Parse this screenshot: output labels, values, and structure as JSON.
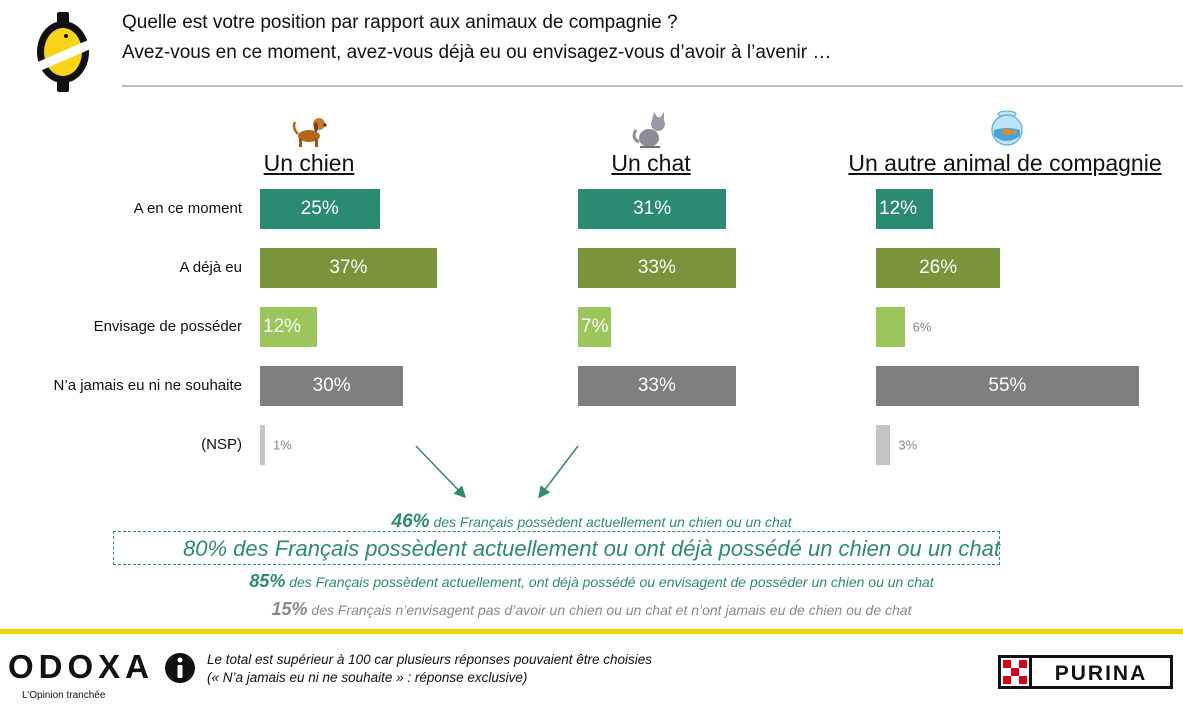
{
  "header": {
    "title_line1": "Quelle est votre position par rapport aux animaux de compagnie ?",
    "title_line2": "Avez-vous en ce moment, avez-vous déjà eu ou envisagez-vous d’avoir à l’avenir …"
  },
  "icons": {
    "logo": "odoxa-badge-icon",
    "dog": "dog-icon",
    "cat": "cat-icon",
    "other": "fishbowl-icon",
    "info": "info-icon",
    "purina": "purina-logo"
  },
  "chart_data": {
    "type": "bar",
    "orientation": "horizontal",
    "categories": [
      "A en ce moment",
      "A déjà eu",
      "Envisage de posséder",
      "N’a jamais eu ni ne souhaite",
      "(NSP)"
    ],
    "category_colors": [
      "#2a8a72",
      "#7a943b",
      "#9cc55c",
      "#7f7f7f",
      "#c4c4c4"
    ],
    "groups": [
      {
        "name": "Un chien",
        "values": [
          25,
          37,
          12,
          30,
          1
        ],
        "labels": [
          "25%",
          "37%",
          "12%",
          "30%",
          "1%"
        ]
      },
      {
        "name": "Un chat",
        "values": [
          31,
          33,
          7,
          33,
          null
        ],
        "labels": [
          "31%",
          "33%",
          "7%",
          "33%",
          ""
        ]
      },
      {
        "name": "Un autre animal de compagnie",
        "values": [
          12,
          26,
          6,
          55,
          3
        ],
        "labels": [
          "12%",
          "26%",
          "6%",
          "55%",
          "3%"
        ]
      }
    ],
    "grid": false,
    "legend": "none"
  },
  "summary": {
    "line1_pct": "46%",
    "line1_text": " des Français possèdent actuellement un chien ou un chat",
    "line2": "80% des Français possèdent actuellement ou ont déjà possédé un chien ou un chat",
    "line3_pct": "85%",
    "line3_text": " des Français possèdent actuellement, ont déjà possédé ou envisagent de posséder un chien ou un chat",
    "line4_pct": "15%",
    "line4_text": " des Français n’envisagent pas d’avoir un chien ou un chat et n’ont jamais eu de chien ou de chat",
    "colors": {
      "teal": "#2e8b6e",
      "gray": "#8a8a8a"
    }
  },
  "footer": {
    "brand": "ODOXA",
    "brand_tagline": "L’Opinion tranchée",
    "note_line1": "Le total est supérieur à 100 car plusieurs réponses pouvaient être choisies",
    "note_line2": "(« N’a jamais eu ni ne souhaite » : réponse exclusive)",
    "partner": "PURINA"
  }
}
